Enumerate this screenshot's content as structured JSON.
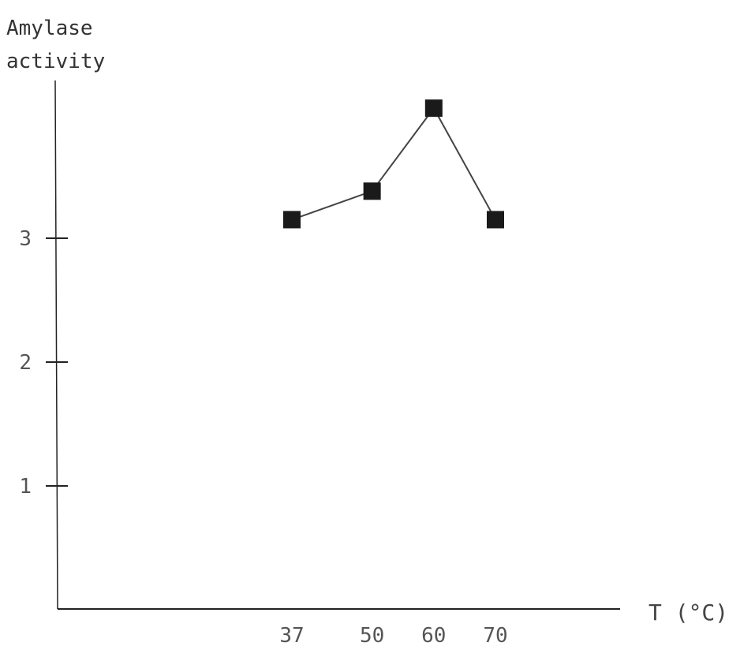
{
  "chart_data": {
    "type": "line",
    "ylabel_lines": [
      "Amylase",
      "activity"
    ],
    "xlabel": "T (°C)",
    "x": [
      37,
      50,
      60,
      70
    ],
    "y": [
      3.15,
      3.38,
      4.05,
      3.15
    ],
    "x_tick_labels": [
      "37",
      "50",
      "60",
      "70"
    ],
    "y_ticks": [
      1,
      2,
      3
    ],
    "y_tick_labels": [
      "1",
      "2",
      "3"
    ],
    "ylim": [
      0,
      4.5
    ],
    "grid": false,
    "colors": {
      "axis": "#222222",
      "line": "#444444",
      "marker": "#1a1a1a"
    }
  }
}
